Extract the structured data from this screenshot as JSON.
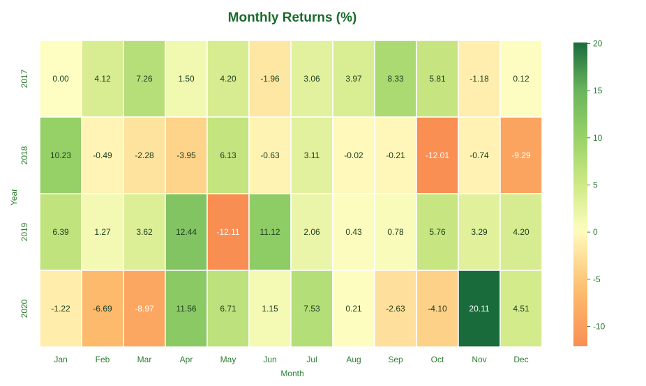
{
  "chart_data": {
    "type": "heatmap",
    "title": "Monthly Returns (%)",
    "xlabel": "Month",
    "ylabel": "Year",
    "x_categories": [
      "Jan",
      "Feb",
      "Mar",
      "Apr",
      "May",
      "Jun",
      "Jul",
      "Aug",
      "Sep",
      "Oct",
      "Nov",
      "Dec"
    ],
    "y_categories": [
      "2017",
      "2018",
      "2019",
      "2020"
    ],
    "values": [
      [
        0.0,
        4.12,
        7.26,
        1.5,
        4.2,
        -1.96,
        3.06,
        3.97,
        8.33,
        5.81,
        -1.18,
        0.12
      ],
      [
        10.23,
        -0.49,
        -2.28,
        -3.95,
        6.13,
        -0.63,
        3.11,
        -0.02,
        -0.21,
        -12.01,
        -0.74,
        -9.29
      ],
      [
        6.39,
        1.27,
        3.62,
        12.44,
        -12.11,
        11.12,
        2.06,
        0.43,
        0.78,
        5.76,
        3.29,
        4.2
      ],
      [
        -1.22,
        -6.69,
        -8.97,
        11.56,
        6.71,
        1.15,
        7.53,
        0.21,
        -2.63,
        -4.1,
        20.11,
        4.51
      ]
    ],
    "cell_labels": [
      [
        "0.00",
        "4.12",
        "7.26",
        "1.50",
        "4.20",
        "-1.96",
        "3.06",
        "3.97",
        "8.33",
        "5.81",
        "-1.18",
        "0.12"
      ],
      [
        "10.23",
        "-0.49",
        "-2.28",
        "-3.95",
        "6.13",
        "-0.63",
        "3.11",
        "-0.02",
        "-0.21",
        "-12.01",
        "-0.74",
        "-9.29"
      ],
      [
        "6.39",
        "1.27",
        "3.62",
        "12.44",
        "-12.11",
        "11.12",
        "2.06",
        "0.43",
        "0.78",
        "5.76",
        "3.29",
        "4.20"
      ],
      [
        "-1.22",
        "-6.69",
        "-8.97",
        "11.56",
        "6.71",
        "1.15",
        "7.53",
        "0.21",
        "-2.63",
        "-4.10",
        "20.11",
        "4.51"
      ]
    ],
    "colorbar": {
      "range": [
        -12.11,
        20.11
      ],
      "ticks": [
        -10,
        -5,
        0,
        5,
        10,
        15,
        20
      ],
      "tick_labels": [
        "-10",
        "-5",
        "0",
        "5",
        "10",
        "15",
        "20"
      ]
    },
    "colors": {
      "title": "#1a6b2a",
      "axis_text": "#2e7d32",
      "negative_stops": [
        "#f98e52",
        "#fdbe6f",
        "#fff9bc"
      ],
      "positive_stops": [
        "#fffec2",
        "#cfe986",
        "#98d268",
        "#69b45c",
        "#1a6b3c"
      ]
    }
  }
}
